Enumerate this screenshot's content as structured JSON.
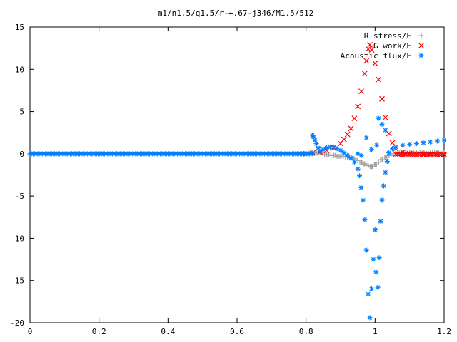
{
  "chart_data": {
    "type": "scatter",
    "title": "m1/n1.5/q1.5/r-+.67-j346/M1.5/512",
    "xlabel": "",
    "ylabel": "",
    "xlim": [
      0,
      1.2
    ],
    "ylim": [
      -20,
      15
    ],
    "xticks": [
      "0",
      "0.2",
      "0.4",
      "0.6",
      "0.8",
      "1",
      "1.2"
    ],
    "yticks": [
      "15",
      "10",
      "5",
      "0",
      "-5",
      "-10",
      "-15",
      "-20"
    ],
    "grid": false,
    "legend_position": "top-right",
    "series": [
      {
        "name": "R stress/E",
        "marker": "plus",
        "color": "#a0a0a0",
        "points": [
          [
            0.84,
            0.1
          ],
          [
            0.86,
            -0.1
          ],
          [
            0.88,
            -0.2
          ],
          [
            0.9,
            -0.3
          ],
          [
            0.92,
            -0.4
          ],
          [
            0.93,
            -0.5
          ],
          [
            0.94,
            -0.6
          ],
          [
            0.95,
            -0.8
          ],
          [
            0.96,
            -1.0
          ],
          [
            0.97,
            -1.2
          ],
          [
            0.98,
            -1.4
          ],
          [
            0.99,
            -1.5
          ],
          [
            1.0,
            -1.3
          ],
          [
            1.01,
            -1.0
          ],
          [
            1.02,
            -0.7
          ],
          [
            1.03,
            -0.4
          ],
          [
            1.04,
            -0.2
          ],
          [
            1.06,
            0.0
          ],
          [
            1.08,
            0.1
          ],
          [
            1.1,
            0.1
          ],
          [
            1.12,
            0.1
          ],
          [
            1.14,
            0.1
          ],
          [
            1.16,
            0.1
          ],
          [
            1.18,
            0.1
          ],
          [
            1.2,
            0.1
          ]
        ]
      },
      {
        "name": "G work/E",
        "marker": "cross",
        "color": "#ff0000",
        "points": [
          [
            0.8,
            0.0
          ],
          [
            0.82,
            0.1
          ],
          [
            0.84,
            0.2
          ],
          [
            0.86,
            0.4
          ],
          [
            0.88,
            0.7
          ],
          [
            0.9,
            1.2
          ],
          [
            0.91,
            1.7
          ],
          [
            0.92,
            2.3
          ],
          [
            0.93,
            3.0
          ],
          [
            0.94,
            4.2
          ],
          [
            0.95,
            5.6
          ],
          [
            0.96,
            7.4
          ],
          [
            0.97,
            9.5
          ],
          [
            0.975,
            11.0
          ],
          [
            0.98,
            12.4
          ],
          [
            0.985,
            12.9
          ],
          [
            0.99,
            12.3
          ],
          [
            1.0,
            10.7
          ],
          [
            1.01,
            8.8
          ],
          [
            1.02,
            6.5
          ],
          [
            1.03,
            4.3
          ],
          [
            1.04,
            2.4
          ],
          [
            1.05,
            1.3
          ],
          [
            1.06,
            0.6
          ],
          [
            1.08,
            0.2
          ],
          [
            1.1,
            0.0
          ],
          [
            1.12,
            -0.1
          ],
          [
            1.14,
            -0.1
          ],
          [
            1.16,
            -0.1
          ],
          [
            1.18,
            -0.1
          ],
          [
            1.2,
            -0.1
          ]
        ]
      },
      {
        "name": "Acoustic flux/E",
        "marker": "star",
        "color": "#0080ff",
        "points": [
          [
            0.818,
            2.2
          ],
          [
            0.822,
            2.0
          ],
          [
            0.826,
            1.6
          ],
          [
            0.83,
            1.2
          ],
          [
            0.835,
            0.7
          ],
          [
            0.84,
            0.3
          ],
          [
            0.85,
            0.5
          ],
          [
            0.86,
            0.7
          ],
          [
            0.87,
            0.8
          ],
          [
            0.88,
            0.8
          ],
          [
            0.89,
            0.6
          ],
          [
            0.9,
            0.4
          ],
          [
            0.91,
            0.1
          ],
          [
            0.92,
            -0.2
          ],
          [
            0.93,
            -0.5
          ],
          [
            0.94,
            -1.0
          ],
          [
            0.95,
            -1.8
          ],
          [
            0.955,
            -2.6
          ],
          [
            0.96,
            -4.0
          ],
          [
            0.965,
            -5.5
          ],
          [
            0.97,
            -7.8
          ],
          [
            0.975,
            -11.4
          ],
          [
            0.98,
            -16.6
          ],
          [
            0.985,
            -19.4
          ],
          [
            0.99,
            -16.0
          ],
          [
            0.995,
            -12.5
          ],
          [
            1.0,
            -9.0
          ],
          [
            1.003,
            -14.0
          ],
          [
            1.008,
            -15.8
          ],
          [
            1.012,
            -12.3
          ],
          [
            1.016,
            -8.0
          ],
          [
            1.02,
            -5.5
          ],
          [
            1.025,
            -3.8
          ],
          [
            1.03,
            -2.2
          ],
          [
            1.035,
            -0.9
          ],
          [
            1.04,
            0.1
          ],
          [
            1.05,
            0.6
          ],
          [
            1.06,
            0.8
          ],
          [
            1.08,
            1.0
          ],
          [
            1.1,
            1.1
          ],
          [
            1.12,
            1.2
          ],
          [
            1.14,
            1.3
          ],
          [
            1.16,
            1.4
          ],
          [
            1.18,
            1.5
          ],
          [
            1.2,
            1.6
          ],
          [
            0.975,
            1.9
          ],
          [
            0.99,
            0.5
          ],
          [
            1.01,
            4.2
          ],
          [
            1.02,
            3.5
          ],
          [
            1.03,
            2.8
          ],
          [
            0.96,
            -0.2
          ],
          [
            0.95,
            0.0
          ],
          [
            1.005,
            1.0
          ]
        ]
      }
    ]
  }
}
